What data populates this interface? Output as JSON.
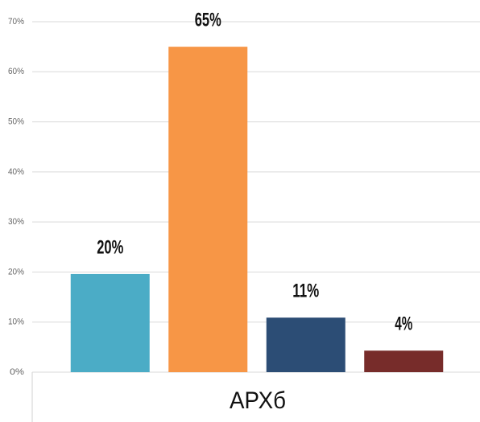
{
  "chart_data": {
    "type": "bar",
    "xlabel": "АРХб",
    "values": [
      19.6,
      65,
      10.9,
      4.3
    ],
    "value_labels": [
      "20%",
      "65%",
      "11%",
      "4%"
    ],
    "colors": [
      "#4bacc6",
      "#f79646",
      "#2c4d75",
      "#772c2a"
    ],
    "ylim": [
      0,
      70
    ],
    "yticks": [
      {
        "value": 0,
        "label": "0%"
      },
      {
        "value": 10,
        "label": "10%"
      },
      {
        "value": 20,
        "label": "20%"
      },
      {
        "value": 30,
        "label": "30%"
      },
      {
        "value": 40,
        "label": "40%"
      },
      {
        "value": 50,
        "label": "50%"
      },
      {
        "value": 60,
        "label": "60%"
      },
      {
        "value": 70,
        "label": "70%"
      }
    ],
    "grid": true
  }
}
